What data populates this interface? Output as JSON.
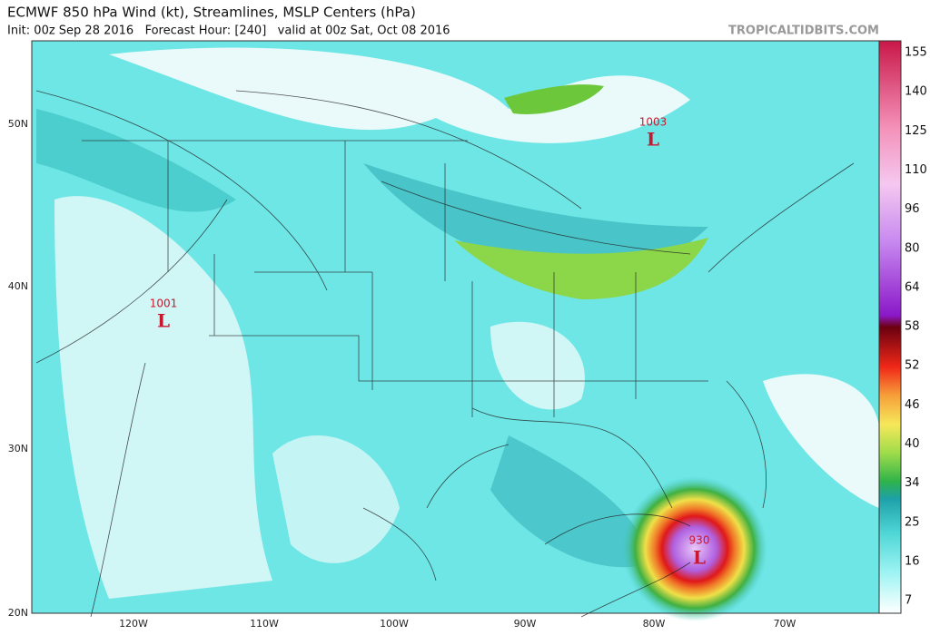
{
  "header": {
    "title": "ECMWF 850 hPa Wind (kt), Streamlines, MSLP Centers (hPa)",
    "subtitle": "Init: 00z Sep 28 2016   Forecast Hour: [240]   valid at 00z Sat, Oct 08 2016",
    "watermark": "TROPICALTIDBITS.COM"
  },
  "latitude_labels": [
    "50N",
    "40N",
    "30N",
    "20N"
  ],
  "longitude_labels": [
    "120W",
    "110W",
    "100W",
    "90W",
    "80W",
    "70W"
  ],
  "colorbar_labels": [
    155,
    140,
    125,
    110,
    96,
    80,
    64,
    58,
    52,
    46,
    40,
    34,
    25,
    16,
    7
  ],
  "pressure_centers": [
    {
      "value": "1003",
      "symbol": "L"
    },
    {
      "value": "1001",
      "symbol": "L"
    },
    {
      "value": "930",
      "symbol": "L"
    }
  ]
}
